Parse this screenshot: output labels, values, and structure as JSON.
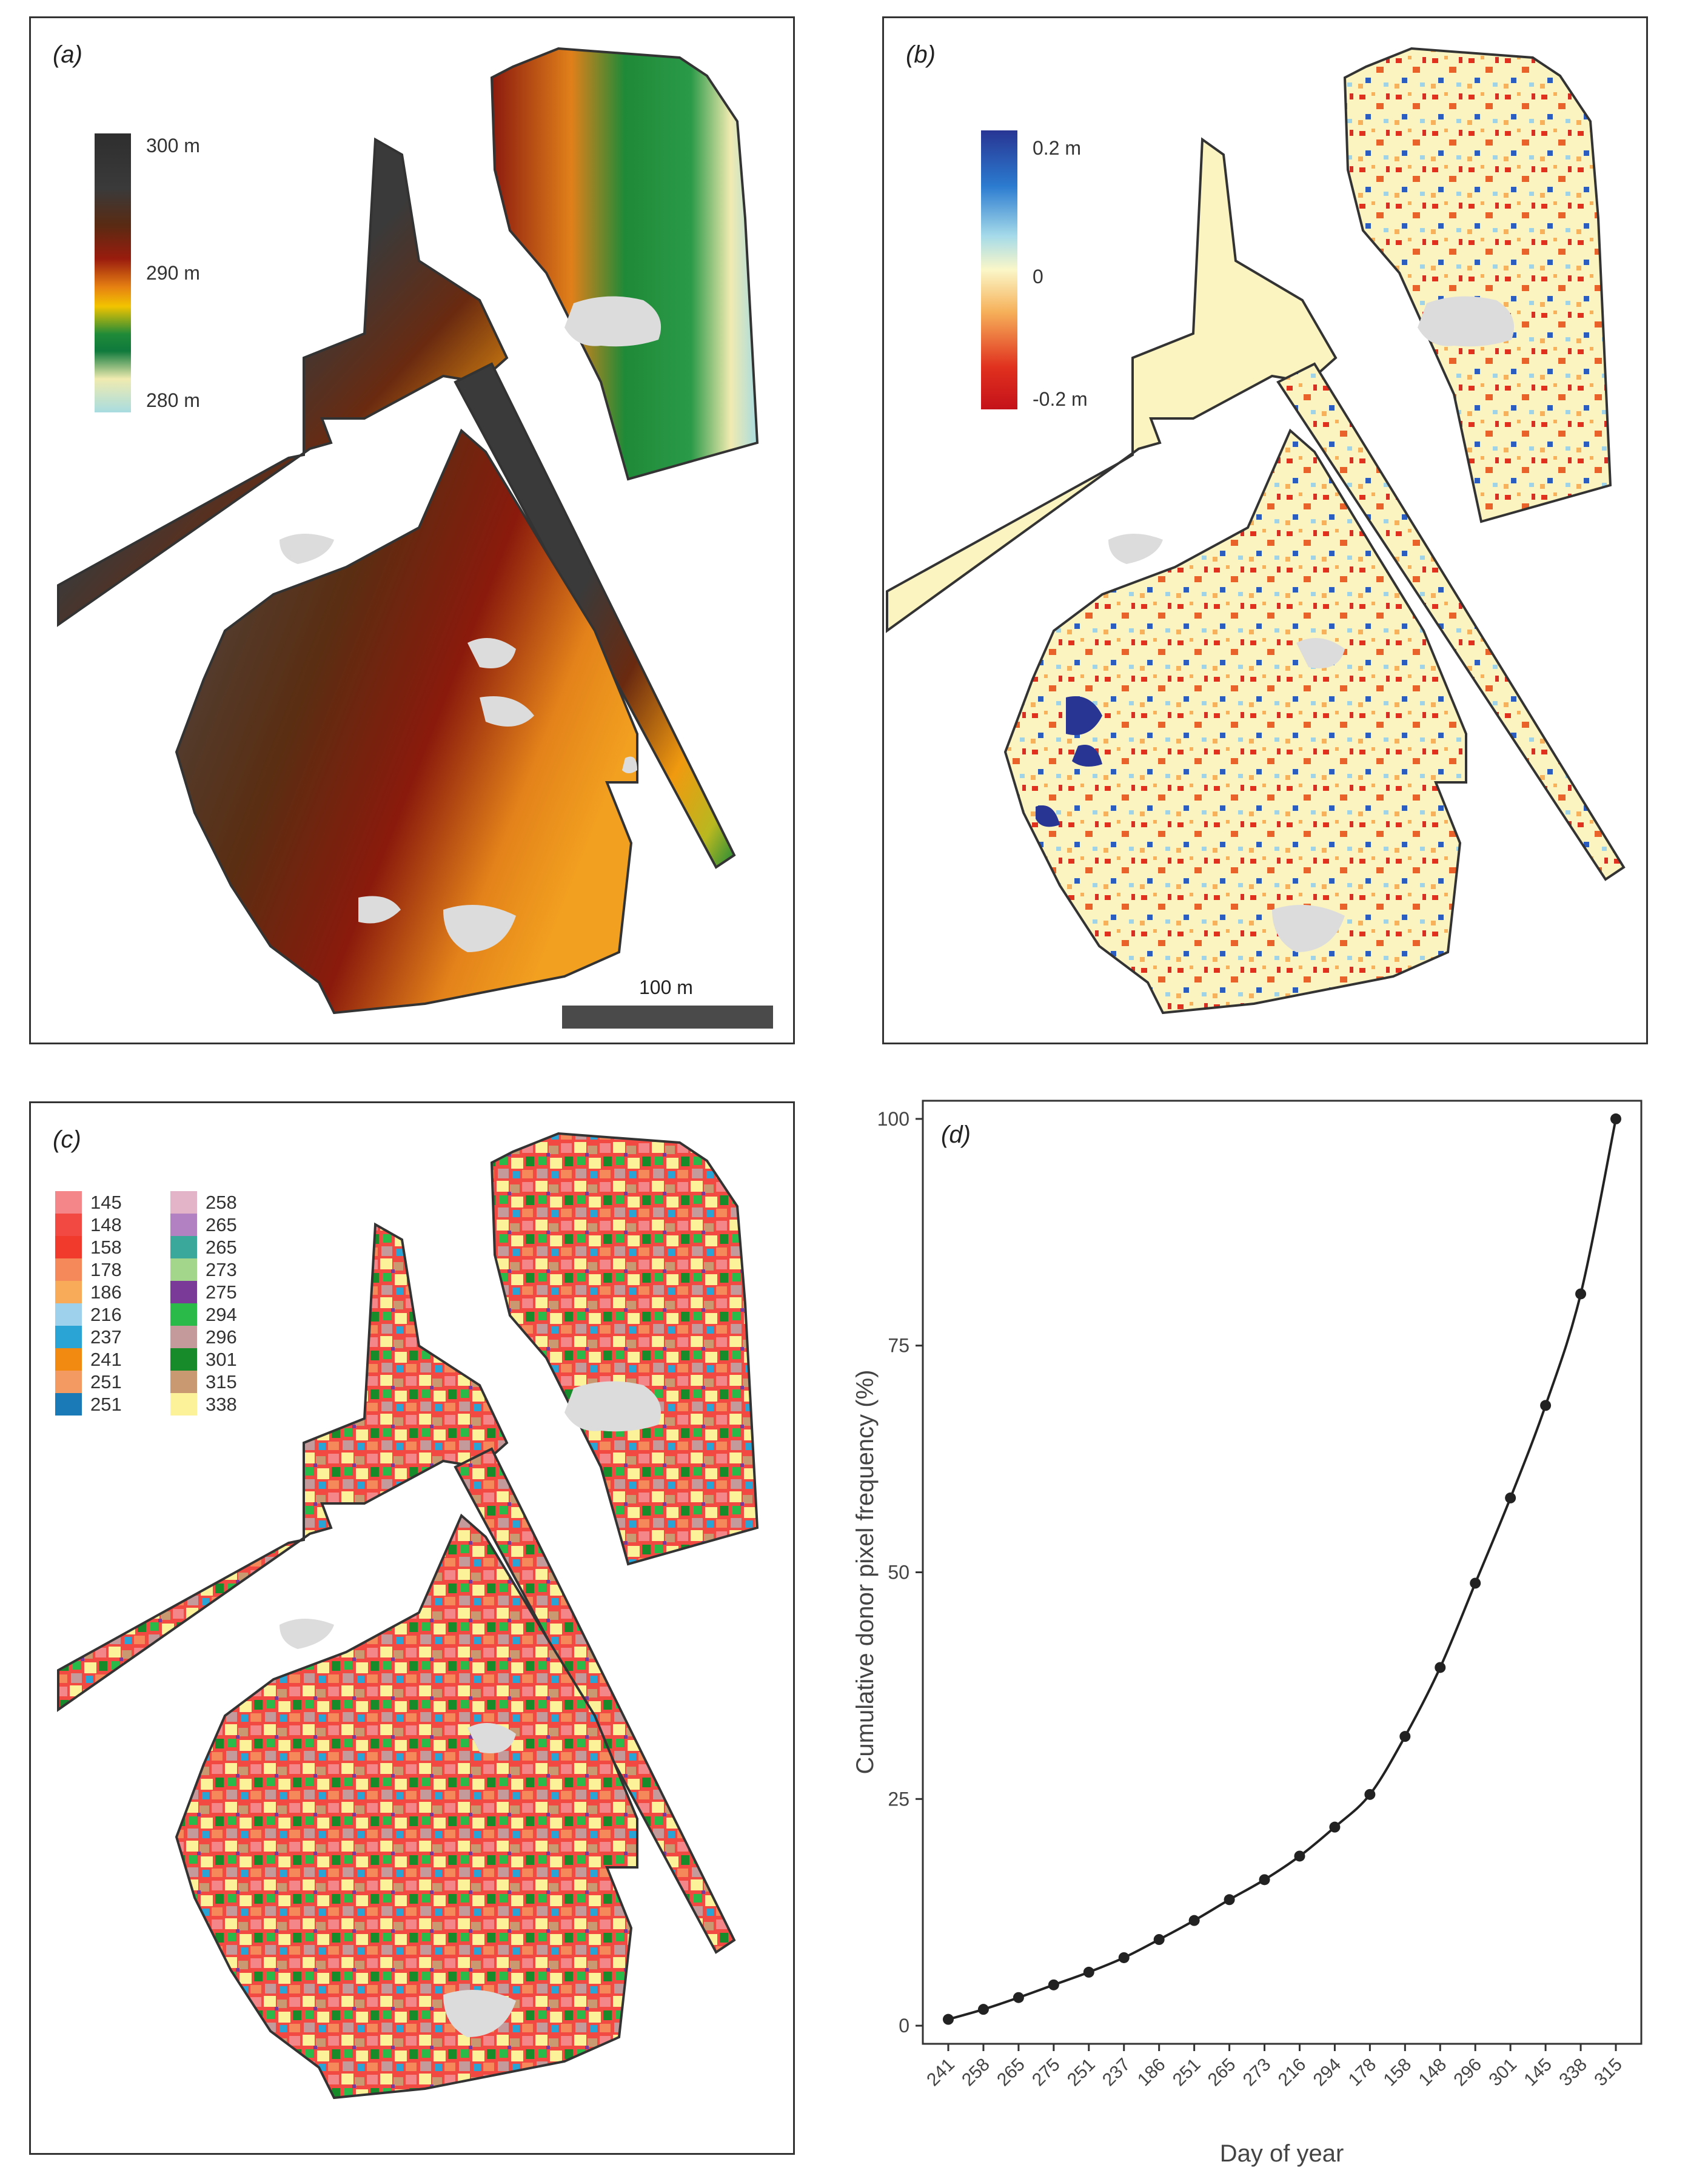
{
  "panels": {
    "a": {
      "label": "(a)",
      "colorbar": {
        "labels": [
          "300 m",
          "290 m",
          "280 m"
        ],
        "stops": [
          "#3a3a3a",
          "#4a2a14",
          "#8c1a0e",
          "#e07a10",
          "#f2c400",
          "#1f8a38",
          "#0f7a3c",
          "#f0ebb0",
          "#a8dce0"
        ]
      },
      "scalebar": {
        "label": "100 m",
        "color": "#4a4a4a"
      }
    },
    "b": {
      "label": "(b)",
      "colorbar": {
        "labels": [
          "0.2 m",
          "0",
          "-0.2 m"
        ],
        "stops": [
          "#283593",
          "#2b7bd0",
          "#a6dbe9",
          "#fbf7c8",
          "#f6b15a",
          "#e0301e",
          "#c4121a"
        ]
      }
    },
    "c": {
      "label": "(c)",
      "legend": [
        {
          "label": "145",
          "color": "#f4868a"
        },
        {
          "label": "148",
          "color": "#f24a43"
        },
        {
          "label": "158",
          "color": "#f23a2c"
        },
        {
          "label": "178",
          "color": "#f5895a"
        },
        {
          "label": "186",
          "color": "#f8ac5a"
        },
        {
          "label": "216",
          "color": "#9ed2ec"
        },
        {
          "label": "237",
          "color": "#2aa4d4"
        },
        {
          "label": "241",
          "color": "#f28a12"
        },
        {
          "label": "251",
          "color": "#f39a63"
        },
        {
          "label": "251",
          "color": "#1a7ab8"
        },
        {
          "label": "258",
          "color": "#e3b4c8"
        },
        {
          "label": "265",
          "color": "#b181c2"
        },
        {
          "label": "265",
          "color": "#3aa89a"
        },
        {
          "label": "273",
          "color": "#a3d68a"
        },
        {
          "label": "275",
          "color": "#7a3a98"
        },
        {
          "label": "294",
          "color": "#2aba4a"
        },
        {
          "label": "296",
          "color": "#c49a9a"
        },
        {
          "label": "301",
          "color": "#178a2a"
        },
        {
          "label": "315",
          "color": "#c99a72"
        },
        {
          "label": "338",
          "color": "#fbf29a"
        }
      ]
    },
    "d": {
      "label": "(d)"
    }
  },
  "map_colors": {
    "gap": "#dcdcdc",
    "outline": "#333333"
  },
  "chart_data": {
    "type": "line",
    "title": "",
    "xlabel": "Day of year",
    "ylabel": "Cumulative donor pixel frequency (%)",
    "categories": [
      "241",
      "258",
      "265",
      "275",
      "251",
      "237",
      "186",
      "251",
      "265",
      "273",
      "216",
      "294",
      "178",
      "158",
      "148",
      "296",
      "301",
      "145",
      "338",
      "315"
    ],
    "values": [
      0.7,
      1.8,
      3.1,
      4.5,
      5.9,
      7.5,
      9.5,
      11.6,
      13.9,
      16.1,
      18.7,
      21.9,
      25.5,
      31.9,
      39.5,
      48.8,
      58.2,
      68.4,
      80.7,
      100
    ],
    "yticks": [
      0,
      25,
      50,
      75,
      100
    ],
    "ylim": [
      -2,
      102
    ],
    "grid": false,
    "line_color": "#222222"
  }
}
